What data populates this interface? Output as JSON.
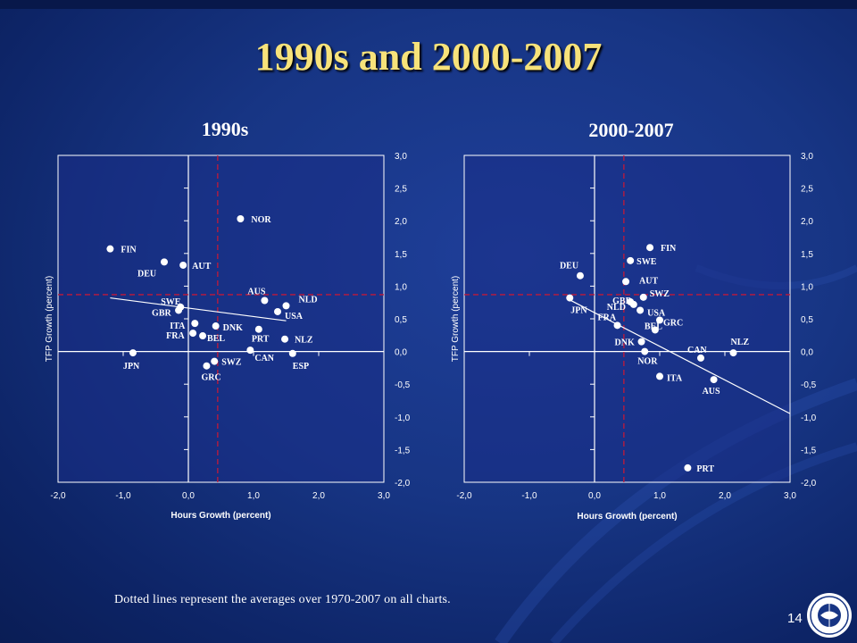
{
  "slide": {
    "title": "1990s and 2000-2007",
    "footnote": "Dotted lines represent the averages over 1970-2007 on all charts.",
    "page_number": "14"
  },
  "colors": {
    "background": "#173584",
    "title": "#f7e27a",
    "plot_area": "#1a2e86",
    "average_line": "#c0193a",
    "points": "#ffffff"
  },
  "chart_data": [
    {
      "type": "scatter",
      "title": "1990s",
      "xlabel": "Hours Growth (percent)",
      "ylabel": "TFP Growth (percent)",
      "xlim": [
        -2.0,
        3.0
      ],
      "ylim": [
        -2.0,
        3.0
      ],
      "x_ticks": [
        "-2,0",
        "-1,0",
        "0,0",
        "1,0",
        "2,0",
        "3,0"
      ],
      "y_ticks": [
        "3,0",
        "2,5",
        "2,0",
        "1,5",
        "1,0",
        "0,5",
        "0,0",
        "-0,5",
        "-1,0",
        "-1,5",
        "-2,0"
      ],
      "average_lines": {
        "x": 0.45,
        "y": 0.87
      },
      "trend_line": {
        "x": [
          -1.2,
          1.5
        ],
        "y": [
          0.82,
          0.47
        ]
      },
      "points": [
        {
          "label": "NOR",
          "x": 0.8,
          "y": 2.03
        },
        {
          "label": "FIN",
          "x": -1.2,
          "y": 1.57
        },
        {
          "label": "DEU",
          "x": -0.37,
          "y": 1.37
        },
        {
          "label": "AUT",
          "x": -0.08,
          "y": 1.32
        },
        {
          "label": "AUS",
          "x": 1.17,
          "y": 0.78
        },
        {
          "label": "NLD",
          "x": 1.5,
          "y": 0.7
        },
        {
          "label": "USA",
          "x": 1.37,
          "y": 0.61
        },
        {
          "label": "SWE",
          "x": -0.12,
          "y": 0.68
        },
        {
          "label": "GBR",
          "x": -0.15,
          "y": 0.63
        },
        {
          "label": "ITA",
          "x": 0.1,
          "y": 0.43
        },
        {
          "label": "DNK",
          "x": 0.42,
          "y": 0.39
        },
        {
          "label": "PRT",
          "x": 1.08,
          "y": 0.34
        },
        {
          "label": "FRA",
          "x": 0.07,
          "y": 0.28
        },
        {
          "label": "BEL",
          "x": 0.22,
          "y": 0.24
        },
        {
          "label": "NLZ",
          "x": 1.48,
          "y": 0.19
        },
        {
          "label": "CAN",
          "x": 0.95,
          "y": 0.02
        },
        {
          "label": "ESP",
          "x": 1.6,
          "y": -0.03
        },
        {
          "label": "JPN",
          "x": -0.85,
          "y": -0.02
        },
        {
          "label": "SWZ",
          "x": 0.4,
          "y": -0.15
        },
        {
          "label": "GRC",
          "x": 0.28,
          "y": -0.22
        }
      ]
    },
    {
      "type": "scatter",
      "title": "2000-2007",
      "xlabel": "Hours Growth (percent)",
      "ylabel": "TFP Growth (percent)",
      "xlim": [
        -2.0,
        3.0
      ],
      "ylim": [
        -2.0,
        3.0
      ],
      "x_ticks": [
        "-2,0",
        "-1,0",
        "0,0",
        "1,0",
        "2,0",
        "3,0"
      ],
      "y_ticks": [
        "3,0",
        "2,5",
        "2,0",
        "1,5",
        "1,0",
        "0,5",
        "0,0",
        "-0,5",
        "-1,0",
        "-1,5",
        "-2,0"
      ],
      "average_lines": {
        "x": 0.45,
        "y": 0.87
      },
      "trend_line": {
        "x": [
          -0.4,
          3.0
        ],
        "y": [
          0.8,
          -0.95
        ]
      },
      "points": [
        {
          "label": "FIN",
          "x": 0.85,
          "y": 1.59
        },
        {
          "label": "SWE",
          "x": 0.55,
          "y": 1.39
        },
        {
          "label": "DEU",
          "x": -0.22,
          "y": 1.16
        },
        {
          "label": "AUT",
          "x": 0.48,
          "y": 1.07
        },
        {
          "label": "GBR",
          "x": 0.55,
          "y": 0.76
        },
        {
          "label": "SWZ",
          "x": 0.75,
          "y": 0.83
        },
        {
          "label": "NLD",
          "x": 0.6,
          "y": 0.72
        },
        {
          "label": "JPN",
          "x": -0.38,
          "y": 0.82
        },
        {
          "label": "USA",
          "x": 0.7,
          "y": 0.63
        },
        {
          "label": "FRA",
          "x": 0.35,
          "y": 0.4
        },
        {
          "label": "GRC",
          "x": 1.0,
          "y": 0.48
        },
        {
          "label": "BEL",
          "x": 0.93,
          "y": 0.33
        },
        {
          "label": "DNK",
          "x": 0.72,
          "y": 0.15
        },
        {
          "label": "NOR",
          "x": 0.77,
          "y": 0.0
        },
        {
          "label": "CAN",
          "x": 1.63,
          "y": -0.1
        },
        {
          "label": "NLZ",
          "x": 2.13,
          "y": -0.02
        },
        {
          "label": "ITA",
          "x": 1.0,
          "y": -0.38
        },
        {
          "label": "AUS",
          "x": 1.83,
          "y": -0.43
        },
        {
          "label": "PRT",
          "x": 1.43,
          "y": -1.78
        }
      ]
    }
  ]
}
